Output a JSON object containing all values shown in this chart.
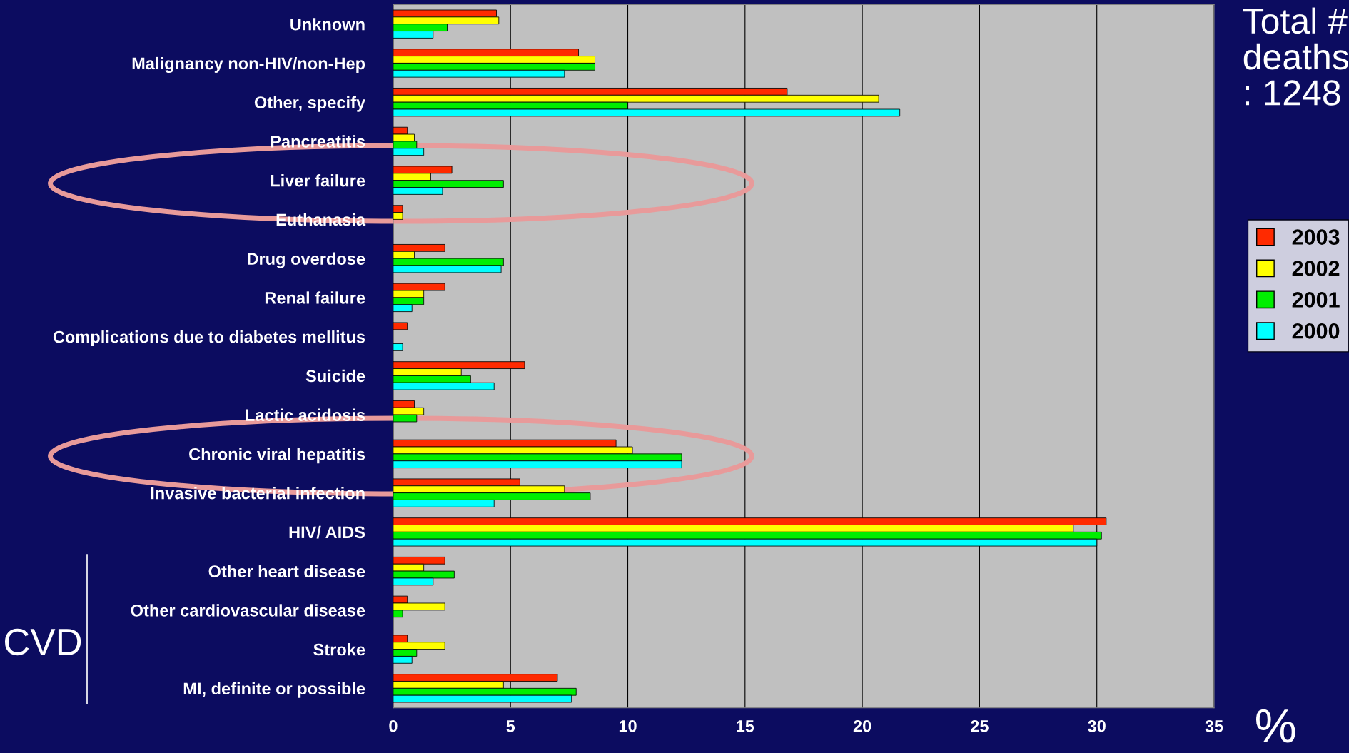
{
  "chart_data": {
    "type": "bar",
    "orientation": "horizontal",
    "categories": [
      "Unknown",
      "Malignancy non-HIV/non-Hep",
      "Other, specify",
      "Pancreatitis",
      "Liver failure",
      "Euthanasia",
      "Drug overdose",
      "Renal failure",
      "Complications due to diabetes mellitus",
      "Suicide",
      "Lactic acidosis",
      "Chronic viral hepatitis",
      "Invasive bacterial infection",
      "HIV/ AIDS",
      "Other heart disease",
      "Other cardiovascular disease",
      "Stroke",
      "MI, definite or possible"
    ],
    "series": [
      {
        "name": "2003",
        "color": "#ff2a00",
        "values": [
          4.4,
          7.9,
          16.8,
          0.6,
          2.5,
          0.4,
          2.2,
          2.2,
          0.6,
          5.6,
          0.9,
          9.5,
          5.4,
          30.4,
          2.2,
          0.6,
          0.6,
          7.0
        ]
      },
      {
        "name": "2002",
        "color": "#ffff00",
        "values": [
          4.5,
          8.6,
          20.7,
          0.9,
          1.6,
          0.4,
          0.9,
          1.3,
          null,
          2.9,
          1.3,
          10.2,
          7.3,
          29.0,
          1.3,
          2.2,
          2.2,
          4.7
        ]
      },
      {
        "name": "2001",
        "color": "#00ee00",
        "values": [
          2.3,
          8.6,
          10.0,
          1.0,
          4.7,
          null,
          4.7,
          1.3,
          null,
          3.3,
          1.0,
          12.3,
          8.4,
          30.2,
          2.6,
          0.4,
          1.0,
          7.8
        ]
      },
      {
        "name": "2000",
        "color": "#00ffff",
        "values": [
          1.7,
          7.3,
          21.6,
          1.3,
          2.1,
          null,
          4.6,
          0.8,
          0.4,
          4.3,
          null,
          12.3,
          4.3,
          30.0,
          1.7,
          null,
          0.8,
          7.6
        ]
      }
    ],
    "xlim": [
      0,
      35
    ],
    "xticks": [
      0,
      5,
      10,
      15,
      20,
      25,
      30,
      35
    ],
    "grid": "x",
    "legend": "right",
    "xlabel": "%",
    "annotations": [
      "Total # deaths : 1248",
      "CVD"
    ]
  }
}
